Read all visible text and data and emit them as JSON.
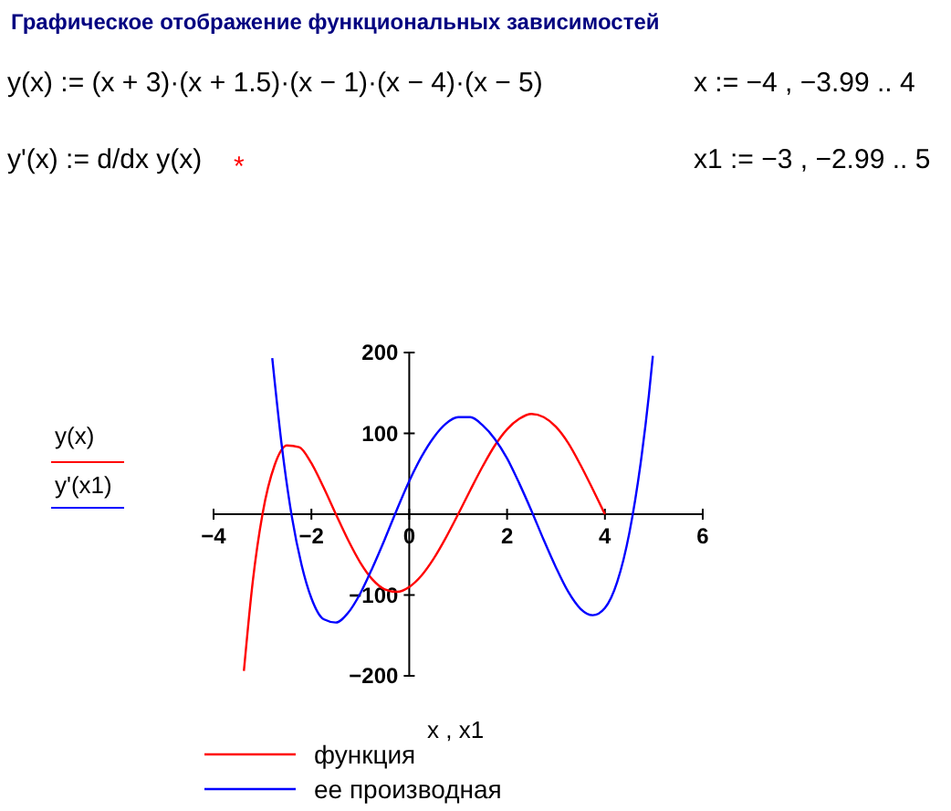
{
  "chart_data": {
    "type": "line",
    "title": "Графическое отображение функциональных зависимостей",
    "xlabel": "x , x1",
    "ylabel": "y(x)",
    "y2label": "y'(x1)",
    "annotations": [
      "y(x) := (x + 3)·(x + 1.5)·(x − 1)·(x − 4)·(x − 5)",
      "x := −4 , −3.99 .. 4",
      "y'(x) := d/dx y(x)",
      "*",
      "x1 := −3 , −2.99 .. 5"
    ],
    "xlim": [
      -4,
      6
    ],
    "xticks": [
      -4,
      -2,
      0,
      2,
      4,
      6
    ],
    "ylim": [
      -200,
      200
    ],
    "yticks": [
      -200,
      -100,
      {
        "value": 0,
        "label": null
      },
      100,
      200
    ],
    "grid": false,
    "legend": "bottom",
    "line_style": "solid",
    "marker": "none",
    "series": [
      {
        "name": "функция",
        "color": "#ff0000",
        "x": [
          -3.38,
          -3.2,
          -3,
          -2.75,
          -2.5,
          -2.25,
          -2,
          -1.75,
          -1.5,
          -1.25,
          -1,
          -0.75,
          -0.5,
          -0.25,
          0,
          0.25,
          0.5,
          0.75,
          1,
          1.25,
          1.5,
          1.75,
          2,
          2.25,
          2.5,
          2.75,
          3,
          3.25,
          3.5,
          3.75,
          4
        ],
        "values": [
          -194,
          -84,
          0,
          61,
          85,
          83,
          63,
          33,
          0,
          -32,
          -60,
          -81,
          -93,
          -96,
          -90,
          -76,
          -55,
          -29,
          0,
          30,
          59,
          85,
          105,
          118,
          124,
          120,
          108,
          88,
          61,
          31,
          0
        ]
      },
      {
        "name": "ее производная",
        "color": "#0000ff",
        "x": [
          -2.8,
          -2.6,
          -2.4,
          -2.2,
          -2,
          -1.75,
          -1.5,
          -1.25,
          -1,
          -0.75,
          -0.5,
          -0.25,
          0,
          0.25,
          0.5,
          0.75,
          1,
          1.25,
          1.5,
          1.75,
          2,
          2.25,
          2.5,
          2.75,
          3,
          3.25,
          3.5,
          3.75,
          4,
          4.25,
          4.5,
          4.75,
          4.9,
          4.98
        ],
        "values": [
          193,
          82,
          -3,
          -63,
          -104,
          -130,
          -134,
          -122,
          -98,
          -66,
          -31,
          6,
          41,
          71,
          95,
          112,
          120,
          120,
          110,
          93,
          69,
          38,
          4,
          -32,
          -66,
          -96,
          -117,
          -125,
          -116,
          -84,
          -23,
          72,
          148,
          196
        ]
      }
    ]
  }
}
